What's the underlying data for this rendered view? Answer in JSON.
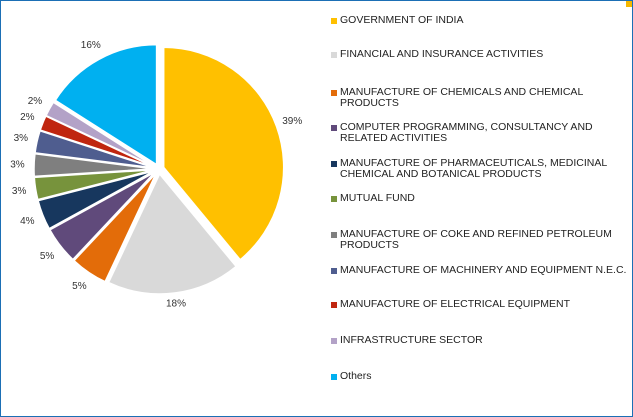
{
  "chart_data": {
    "type": "pie",
    "start_angle_deg": 0,
    "direction": "clockwise",
    "exploded": true,
    "legend_position": "right",
    "slices": [
      {
        "label": "GOVERNMENT OF INDIA",
        "value": 39,
        "value_label": "39%",
        "color": "#ffc000"
      },
      {
        "label": "FINANCIAL AND INSURANCE ACTIVITIES",
        "value": 18,
        "value_label": "18%",
        "color": "#d9d9d9"
      },
      {
        "label": "MANUFACTURE OF CHEMICALS AND CHEMICAL PRODUCTS",
        "value": 5,
        "value_label": "5%",
        "color": "#e36c09"
      },
      {
        "label": "COMPUTER PROGRAMMING, CONSULTANCY AND RELATED ACTIVITIES",
        "value": 5,
        "value_label": "5%",
        "color": "#604a7b"
      },
      {
        "label": "MANUFACTURE OF PHARMACEUTICALS, MEDICINAL CHEMICAL AND BOTANICAL PRODUCTS",
        "value": 4,
        "value_label": "4%",
        "color": "#17375e"
      },
      {
        "label": "MUTUAL FUND",
        "value": 3,
        "value_label": "3%",
        "color": "#77933c"
      },
      {
        "label": "MANUFACTURE OF COKE AND REFINED PETROLEUM PRODUCTS",
        "value": 3,
        "value_label": "3%",
        "color": "#7f7f7f"
      },
      {
        "label": "MANUFACTURE OF MACHINERY AND EQUIPMENT N.E.C.",
        "value": 3,
        "value_label": "3%",
        "color": "#4f5d8f"
      },
      {
        "label": "MANUFACTURE OF ELECTRICAL EQUIPMENT",
        "value": 2,
        "value_label": "2%",
        "color": "#c0260f"
      },
      {
        "label": "INFRASTRUCTURE SECTOR",
        "value": 2,
        "value_label": "2%",
        "color": "#b3a2c7"
      },
      {
        "label": "Others",
        "value": 16,
        "value_label": "16%",
        "color": "#00b0f0"
      }
    ]
  }
}
